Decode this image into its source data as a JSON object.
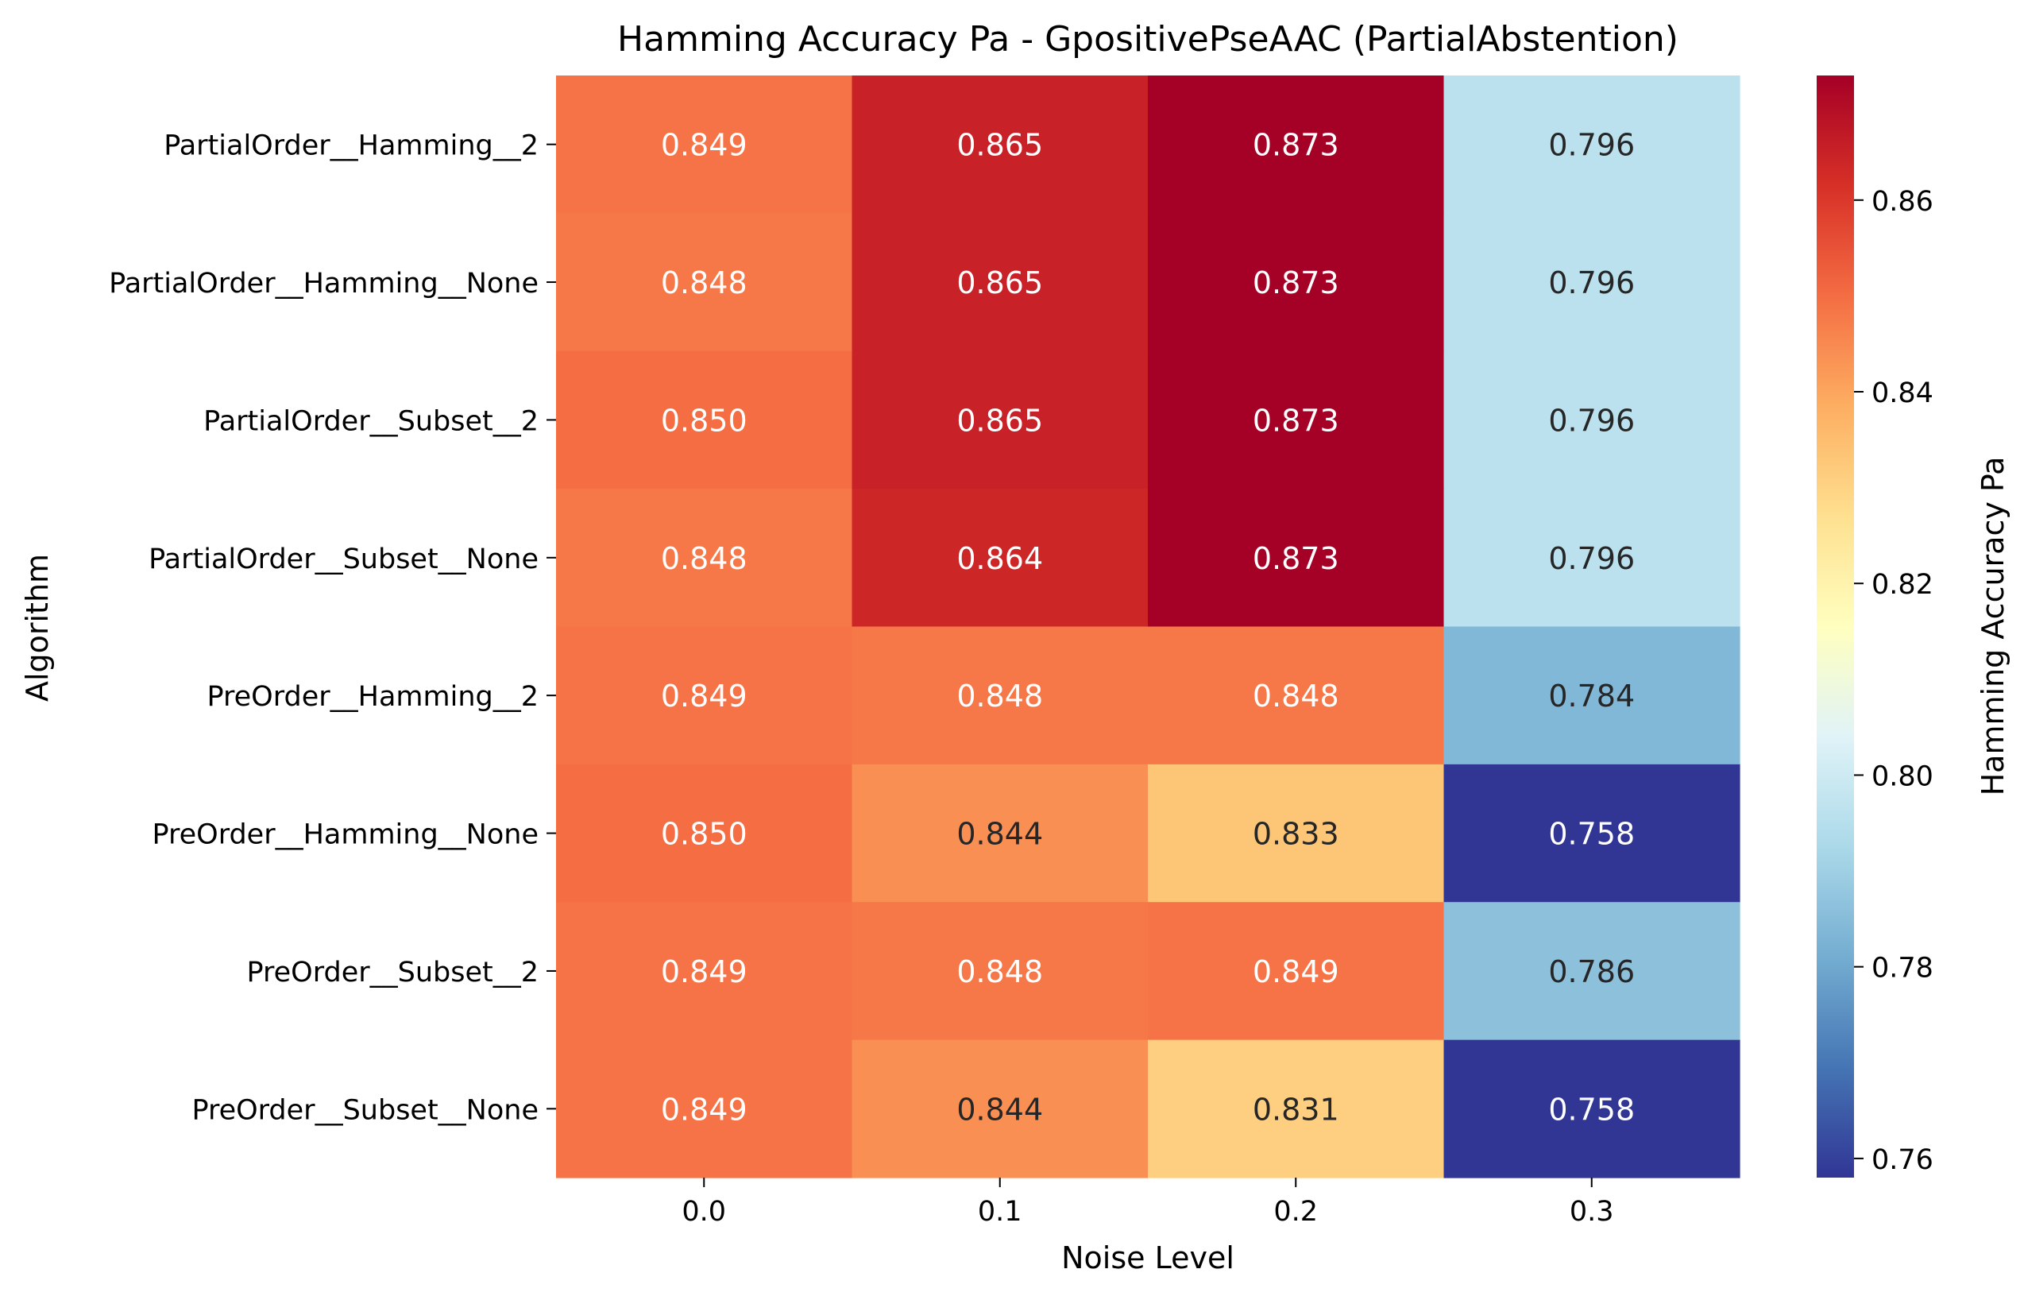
{
  "chart_data": {
    "type": "heatmap",
    "title": "Hamming Accuracy Pa - GpositivePseAAC (PartialAbstention)",
    "xlabel": "Noise Level",
    "ylabel": "Algorithm",
    "x": [
      "0.0",
      "0.1",
      "0.2",
      "0.3"
    ],
    "y": [
      "PartialOrder__Hamming__2",
      "PartialOrder__Hamming__None",
      "PartialOrder__Subset__2",
      "PartialOrder__Subset__None",
      "PreOrder__Hamming__2",
      "PreOrder__Hamming__None",
      "PreOrder__Subset__2",
      "PreOrder__Subset__None"
    ],
    "values": [
      [
        0.849,
        0.865,
        0.873,
        0.796
      ],
      [
        0.848,
        0.865,
        0.873,
        0.796
      ],
      [
        0.85,
        0.865,
        0.873,
        0.796
      ],
      [
        0.848,
        0.864,
        0.873,
        0.796
      ],
      [
        0.849,
        0.848,
        0.848,
        0.784
      ],
      [
        0.85,
        0.844,
        0.833,
        0.758
      ],
      [
        0.849,
        0.848,
        0.849,
        0.786
      ],
      [
        0.849,
        0.844,
        0.831,
        0.758
      ]
    ],
    "value_labels": [
      [
        "0.849",
        "0.865",
        "0.873",
        "0.796"
      ],
      [
        "0.848",
        "0.865",
        "0.873",
        "0.796"
      ],
      [
        "0.850",
        "0.865",
        "0.873",
        "0.796"
      ],
      [
        "0.848",
        "0.864",
        "0.873",
        "0.796"
      ],
      [
        "0.849",
        "0.848",
        "0.848",
        "0.784"
      ],
      [
        "0.850",
        "0.844",
        "0.833",
        "0.758"
      ],
      [
        "0.849",
        "0.848",
        "0.849",
        "0.786"
      ],
      [
        "0.849",
        "0.844",
        "0.831",
        "0.758"
      ]
    ],
    "colormap": "RdYlBu_r",
    "colormap_stops": [
      "#313695",
      "#4575b4",
      "#74add1",
      "#abd9e9",
      "#e0f3f8",
      "#ffffbf",
      "#fee090",
      "#fdae61",
      "#f46d43",
      "#d73027",
      "#a50026"
    ],
    "vmin": 0.758,
    "vmax": 0.873,
    "colorbar": {
      "label": "Hamming Accuracy Pa",
      "ticks": [
        0.76,
        0.78,
        0.8,
        0.82,
        0.84,
        0.86
      ],
      "tick_labels": [
        "0.76",
        "0.78",
        "0.80",
        "0.82",
        "0.84",
        "0.86"
      ]
    }
  }
}
